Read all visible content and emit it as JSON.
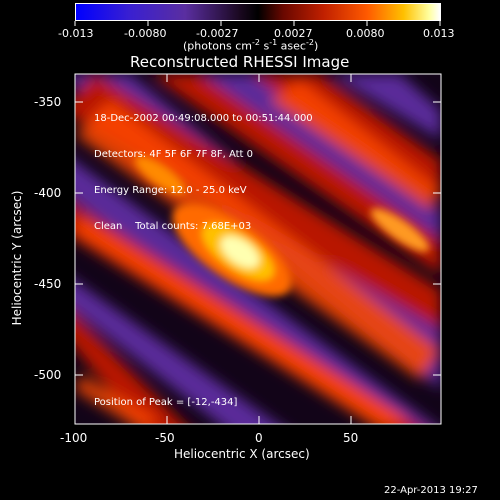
{
  "colorbar": {
    "tick_labels": [
      "-0.013",
      "-0.0080",
      "-0.0027",
      "0.0027",
      "0.0080",
      "0.013"
    ],
    "units_text": "(photons cm",
    "units_sup1": "-2",
    "units_mid1": " s",
    "units_sup2": "-1",
    "units_mid2": " asec",
    "units_sup3": "-2",
    "units_close": ")"
  },
  "plot": {
    "title": "Reconstructed RHESSI Image",
    "info_lines": [
      "18-Dec-2002 00:49:08.000 to 00:51:44.000",
      "Detectors: 4F 5F 6F 7F 8F, Att 0",
      "Energy Range: 12.0 - 25.0 keV",
      "Clean    Total counts: 7.68E+03"
    ],
    "peak_text": "Position of Peak = [-12,-434]"
  },
  "chart_data": {
    "type": "heatmap",
    "title": "Reconstructed RHESSI Image",
    "xlabel": "Heliocentric X (arcsec)",
    "ylabel": "Heliocentric Y (arcsec)",
    "xlim": [
      -100,
      89
    ],
    "ylim": [
      -528,
      -331
    ],
    "x_ticks": [
      "-100",
      "-50",
      "0",
      "50"
    ],
    "y_ticks": [
      "-350",
      "-400",
      "-450",
      "-500"
    ],
    "x_tick_values": [
      -100,
      -50,
      0,
      50
    ],
    "y_tick_values": [
      -350,
      -400,
      -450,
      -500
    ],
    "colorbar_range": [
      -0.013,
      0.013
    ],
    "peak": {
      "x": -12,
      "y": -434
    },
    "colormap": [
      "#0000ff",
      "#5a2ea0",
      "#000000",
      "#a01000",
      "#ff5000",
      "#ffcc00",
      "#ffffff"
    ]
  },
  "timestamp": "22-Apr-2013 19:27"
}
